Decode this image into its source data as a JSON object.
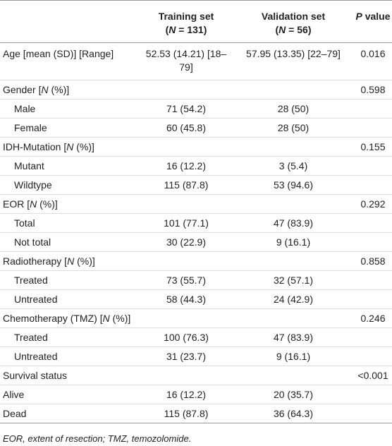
{
  "table": {
    "header": [
      [],
      [
        [
          {
            "text": "Training set"
          }
        ],
        [
          {
            "text": "("
          },
          {
            "text": "N",
            "italic": true
          },
          {
            "text": " = 131)"
          }
        ]
      ],
      [
        [
          {
            "text": "Validation set"
          }
        ],
        [
          {
            "text": "("
          },
          {
            "text": "N",
            "italic": true
          },
          {
            "text": " = 56)"
          }
        ]
      ],
      [
        [
          {
            "text": "P",
            "italic": true
          },
          {
            "text": " value"
          }
        ]
      ]
    ],
    "rows": [
      {
        "label": [
          {
            "text": "Age [mean (SD)] [Range]"
          }
        ],
        "cells": [
          "52.53 (14.21) [18–79]",
          "57.95 (13.35) [22–79]",
          "0.016"
        ]
      },
      {
        "label": [
          {
            "text": "Gender ["
          },
          {
            "text": "N",
            "italic": true
          },
          {
            "text": " (%)]"
          }
        ],
        "cells": [
          null,
          null,
          "0.598"
        ]
      },
      {
        "label": [
          {
            "text": "Male"
          }
        ],
        "indent": true,
        "cells": [
          "71 (54.2)",
          "28 (50)",
          null
        ]
      },
      {
        "label": [
          {
            "text": "Female"
          }
        ],
        "indent": true,
        "cells": [
          "60 (45.8)",
          "28 (50)",
          null
        ]
      },
      {
        "label": [
          {
            "text": "IDH-Mutation ["
          },
          {
            "text": "N",
            "italic": true
          },
          {
            "text": " (%)]"
          }
        ],
        "cells": [
          null,
          null,
          "0.155"
        ]
      },
      {
        "label": [
          {
            "text": "Mutant"
          }
        ],
        "indent": true,
        "cells": [
          "16 (12.2)",
          "3 (5.4)",
          null
        ]
      },
      {
        "label": [
          {
            "text": "Wildtype"
          }
        ],
        "indent": true,
        "cells": [
          "115 (87.8)",
          "53 (94.6)",
          null
        ]
      },
      {
        "label": [
          {
            "text": "EOR ["
          },
          {
            "text": "N",
            "italic": true
          },
          {
            "text": " (%)]"
          }
        ],
        "cells": [
          null,
          null,
          "0.292"
        ]
      },
      {
        "label": [
          {
            "text": "Total"
          }
        ],
        "indent": true,
        "cells": [
          "101 (77.1)",
          "47 (83.9)",
          null
        ]
      },
      {
        "label": [
          {
            "text": "Not total"
          }
        ],
        "indent": true,
        "cells": [
          "30 (22.9)",
          "9 (16.1)",
          null
        ]
      },
      {
        "label": [
          {
            "text": "Radiotherapy ["
          },
          {
            "text": "N",
            "italic": true
          },
          {
            "text": " (%)]"
          }
        ],
        "cells": [
          null,
          null,
          "0.858"
        ]
      },
      {
        "label": [
          {
            "text": "Treated"
          }
        ],
        "indent": true,
        "cells": [
          "73 (55.7)",
          "32 (57.1)",
          null
        ]
      },
      {
        "label": [
          {
            "text": "Untreated"
          }
        ],
        "indent": true,
        "cells": [
          "58 (44.3)",
          "24 (42.9)",
          null
        ]
      },
      {
        "label": [
          {
            "text": "Chemotherapy (TMZ) ["
          },
          {
            "text": "N",
            "italic": true
          },
          {
            "text": " (%)]"
          }
        ],
        "cells": [
          null,
          null,
          "0.246"
        ]
      },
      {
        "label": [
          {
            "text": "Treated"
          }
        ],
        "indent": true,
        "cells": [
          "100 (76.3)",
          "47 (83.9)",
          null
        ]
      },
      {
        "label": [
          {
            "text": "Untreated"
          }
        ],
        "indent": true,
        "cells": [
          "31 (23.7)",
          "9 (16.1)",
          null
        ]
      },
      {
        "label": [
          {
            "text": "Survival status"
          }
        ],
        "cells": [
          null,
          null,
          "<0.001"
        ]
      },
      {
        "label": [
          {
            "text": "Alive"
          }
        ],
        "cells": [
          "16 (12.2)",
          "20 (35.7)",
          null
        ]
      },
      {
        "label": [
          {
            "text": "Dead"
          }
        ],
        "cells": [
          "115 (87.8)",
          "36 (64.3)",
          null
        ]
      }
    ],
    "footnote": "EOR, extent of resection; TMZ, temozolomide."
  }
}
